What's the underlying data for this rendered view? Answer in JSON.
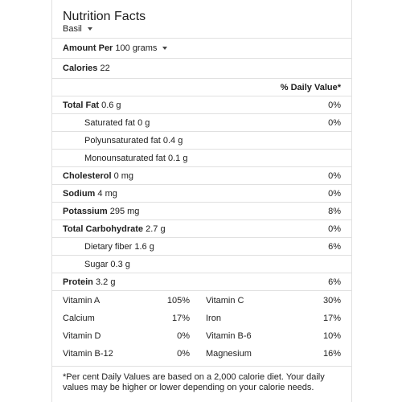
{
  "title": "Nutrition Facts",
  "food": "Basil",
  "amount": {
    "label": "Amount Per",
    "value": "100 grams"
  },
  "calories": {
    "label": "Calories",
    "value": "22"
  },
  "daily_value_header": "% Daily Value*",
  "nutrients": [
    {
      "label": "Total Fat",
      "value": "0.6 g",
      "pct": "0%"
    },
    {
      "label": "Saturated fat",
      "value": "0 g",
      "pct": "0%"
    },
    {
      "label": "Polyunsaturated fat",
      "value": "0.4 g",
      "pct": ""
    },
    {
      "label": "Monounsaturated fat",
      "value": "0.1 g",
      "pct": ""
    },
    {
      "label": "Cholesterol",
      "value": "0 mg",
      "pct": "0%"
    },
    {
      "label": "Sodium",
      "value": "4 mg",
      "pct": "0%"
    },
    {
      "label": "Potassium",
      "value": "295 mg",
      "pct": "8%"
    },
    {
      "label": "Total Carbohydrate",
      "value": "2.7 g",
      "pct": "0%"
    },
    {
      "label": "Dietary fiber",
      "value": "1.6 g",
      "pct": "6%"
    },
    {
      "label": "Sugar",
      "value": "0.3 g",
      "pct": ""
    },
    {
      "label": "Protein",
      "value": "3.2 g",
      "pct": "6%"
    }
  ],
  "vitamins": [
    {
      "left": {
        "name": "Vitamin A",
        "pct": "105%"
      },
      "right": {
        "name": "Vitamin C",
        "pct": "30%"
      }
    },
    {
      "left": {
        "name": "Calcium",
        "pct": "17%"
      },
      "right": {
        "name": "Iron",
        "pct": "17%"
      }
    },
    {
      "left": {
        "name": "Vitamin D",
        "pct": "0%"
      },
      "right": {
        "name": "Vitamin B-6",
        "pct": "10%"
      }
    },
    {
      "left": {
        "name": "Vitamin B-12",
        "pct": "0%"
      },
      "right": {
        "name": "Magnesium",
        "pct": "16%"
      }
    }
  ],
  "footnote": "*Per cent Daily Values are based on a 2,000 calorie diet. Your daily values may be higher or lower depending on your calorie needs."
}
